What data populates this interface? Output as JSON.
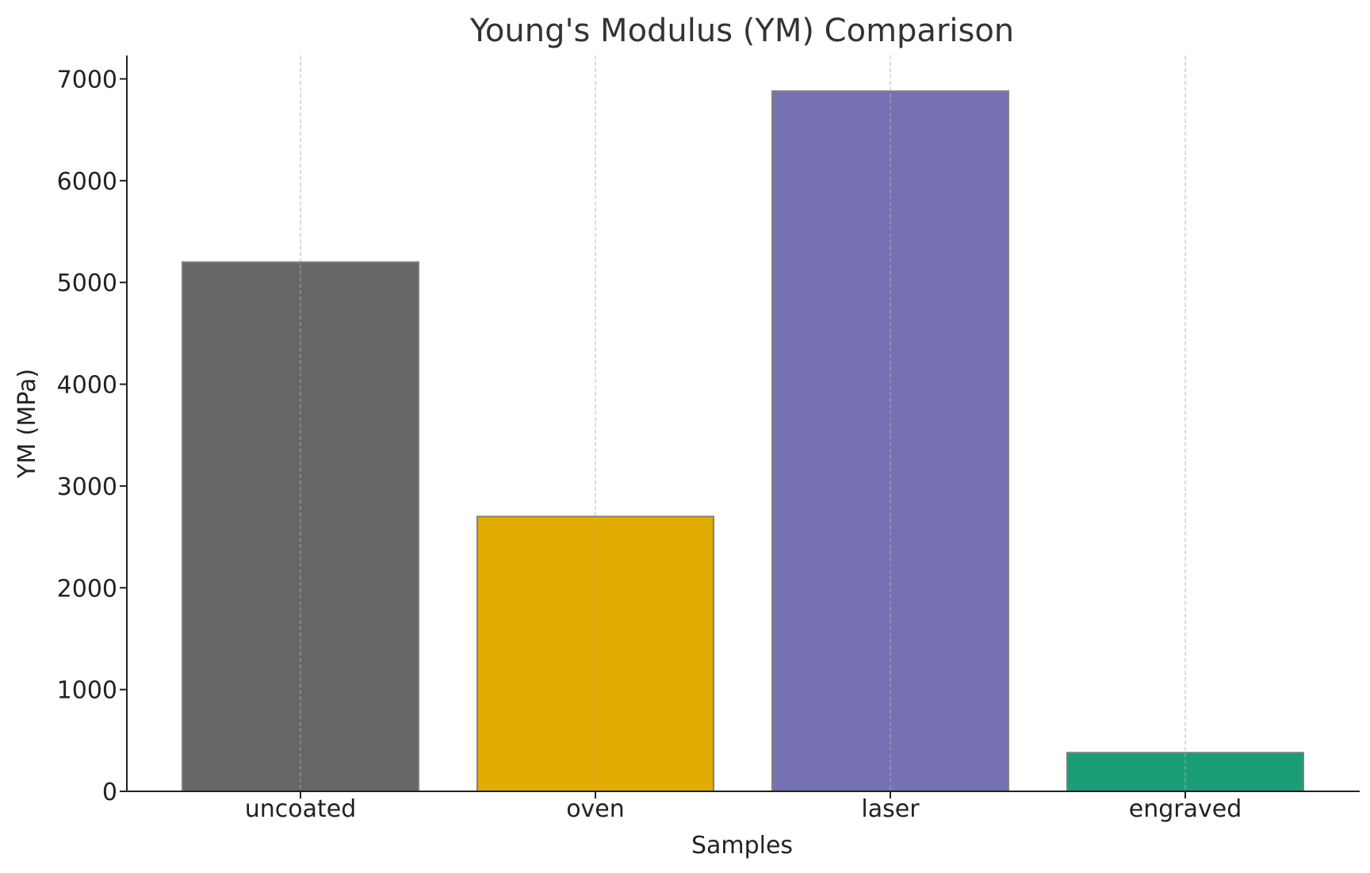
{
  "chart_data": {
    "type": "bar",
    "title": "Young's Modulus (YM) Comparison",
    "xlabel": "Samples",
    "ylabel": "YM (MPa)",
    "categories": [
      "uncoated",
      "oven",
      "laser",
      "engraved"
    ],
    "values": [
      5200,
      2700,
      6880,
      380
    ],
    "colors": [
      "#666666",
      "#e3ac02",
      "#7671b2",
      "#1b9d77"
    ],
    "edge_color": "#808080",
    "ylim": [
      0,
      7230
    ],
    "yticks": [
      0,
      1000,
      2000,
      3000,
      4000,
      5000,
      6000,
      7000
    ],
    "grid": "vertical dashed",
    "legend": "none"
  }
}
